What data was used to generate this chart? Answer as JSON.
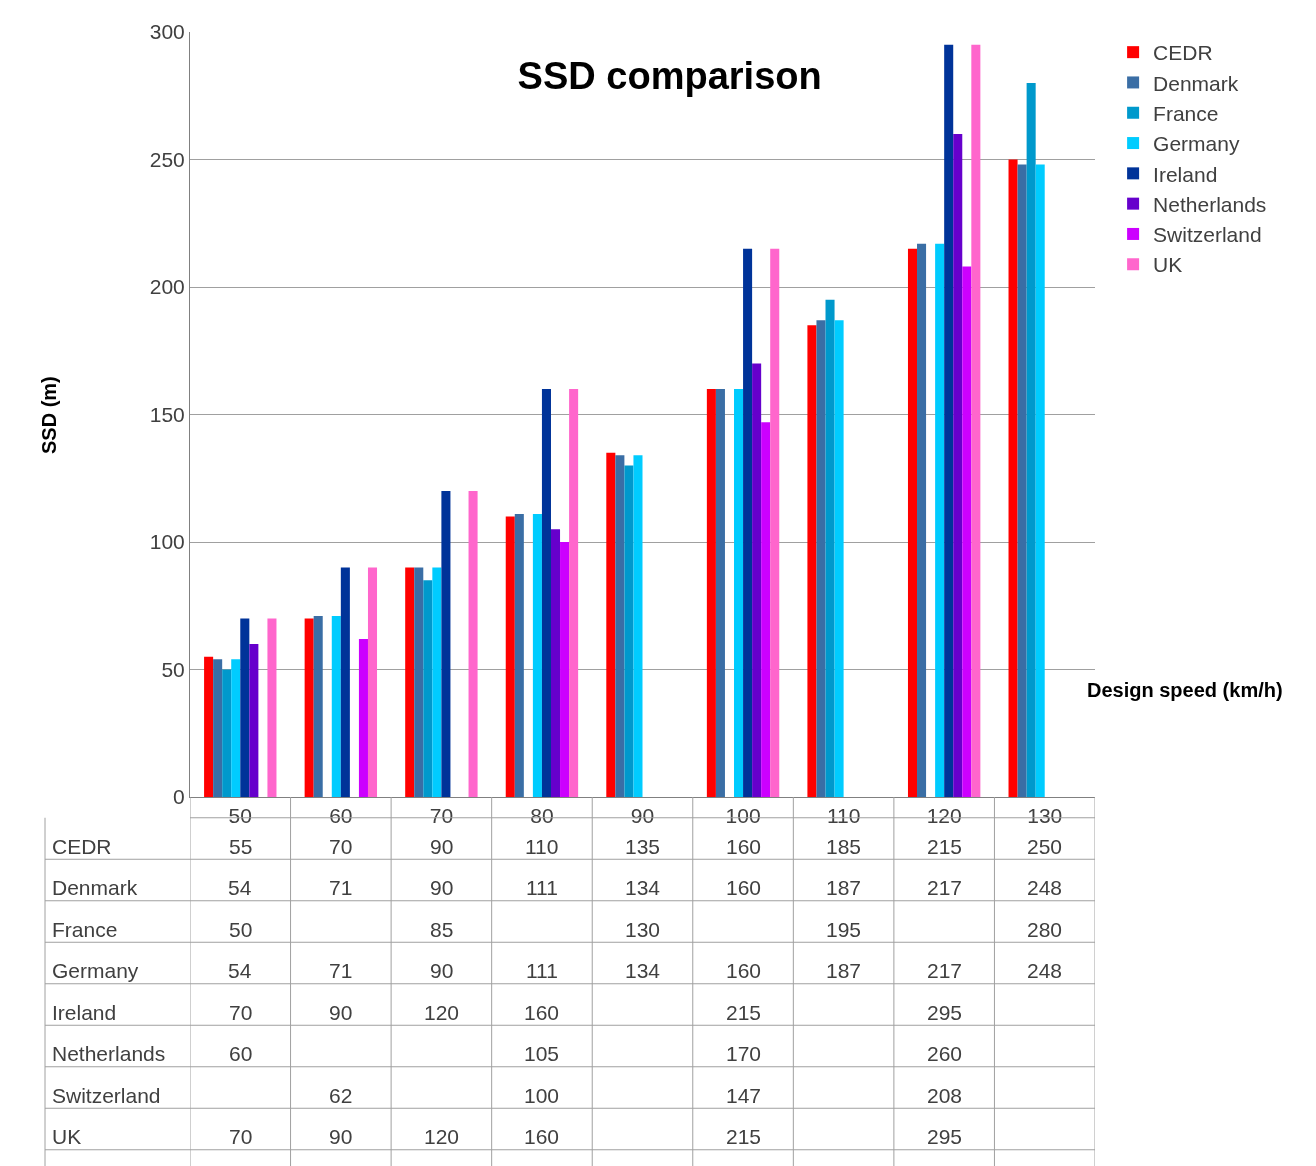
{
  "chart_data": {
    "type": "bar",
    "title": "SSD comparison",
    "xlabel": "Design speed (km/h)",
    "ylabel": "SSD (m)",
    "categories": [
      "50",
      "60",
      "70",
      "80",
      "90",
      "100",
      "110",
      "120",
      "130"
    ],
    "series": [
      {
        "name": "CEDR",
        "color": "#ff0000",
        "values": [
          55,
          70,
          90,
          110,
          135,
          160,
          185,
          215,
          250
        ]
      },
      {
        "name": "Denmark",
        "color": "#3a6ea5",
        "values": [
          54,
          71,
          90,
          111,
          134,
          160,
          187,
          217,
          248
        ]
      },
      {
        "name": "France",
        "color": "#0099cc",
        "values": [
          50,
          null,
          85,
          null,
          130,
          null,
          195,
          null,
          280
        ]
      },
      {
        "name": "Germany",
        "color": "#00ccff",
        "values": [
          54,
          71,
          90,
          111,
          134,
          160,
          187,
          217,
          248
        ]
      },
      {
        "name": "Ireland",
        "color": "#003399",
        "values": [
          70,
          90,
          120,
          160,
          null,
          215,
          null,
          295,
          null
        ]
      },
      {
        "name": "Netherlands",
        "color": "#6600cc",
        "values": [
          60,
          null,
          null,
          105,
          null,
          170,
          null,
          260,
          null
        ]
      },
      {
        "name": "Switzerland",
        "color": "#cc00ff",
        "values": [
          null,
          62,
          null,
          100,
          null,
          147,
          null,
          208,
          null
        ]
      },
      {
        "name": "UK",
        "color": "#ff66cc",
        "values": [
          70,
          90,
          120,
          160,
          null,
          215,
          null,
          295,
          null
        ]
      }
    ],
    "ylim": [
      0,
      300
    ],
    "yticks": [
      0,
      50,
      100,
      150,
      200,
      250,
      300
    ],
    "grid": "y",
    "legend": "top right",
    "data_labels": true
  }
}
